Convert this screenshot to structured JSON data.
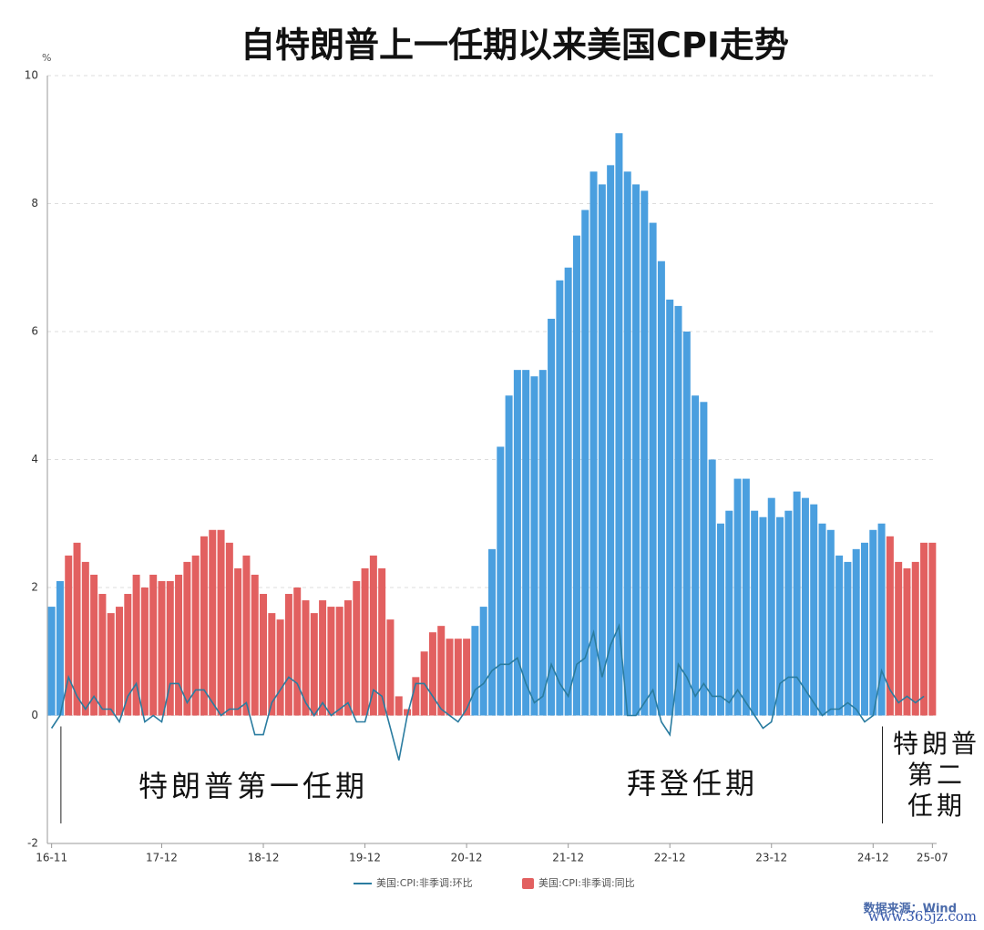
{
  "chart_data": {
    "type": "bar",
    "title": "自特朗普上一任期以来美国CPI走势",
    "y_unit": "%",
    "categories": [
      "16-11",
      null,
      null,
      null,
      null,
      null,
      null,
      null,
      null,
      null,
      null,
      null,
      null,
      "17-12",
      null,
      null,
      null,
      null,
      null,
      null,
      null,
      null,
      null,
      null,
      null,
      "18-12",
      null,
      null,
      null,
      null,
      null,
      null,
      null,
      null,
      null,
      null,
      null,
      "19-12",
      null,
      null,
      null,
      null,
      null,
      null,
      null,
      null,
      null,
      null,
      null,
      "20-12",
      null,
      null,
      null,
      null,
      null,
      null,
      null,
      null,
      null,
      null,
      null,
      "21-12",
      null,
      null,
      null,
      null,
      null,
      null,
      null,
      null,
      null,
      null,
      null,
      "22-12",
      null,
      null,
      null,
      null,
      null,
      null,
      null,
      null,
      null,
      null,
      null,
      "23-12",
      null,
      null,
      null,
      null,
      null,
      null,
      null,
      null,
      null,
      null,
      null,
      "24-12",
      null,
      null,
      null,
      null,
      null,
      null,
      "25-07"
    ],
    "ylim": [
      -2,
      10
    ],
    "yticks": [
      -2,
      0,
      2,
      4,
      6,
      8,
      10
    ],
    "grid": true,
    "series": [
      {
        "name": "美国:CPI:非季调:同比",
        "type": "bar",
        "color": "#e26060",
        "values": [
          1.7,
          2.1,
          2.5,
          2.7,
          2.4,
          2.2,
          1.9,
          1.6,
          1.7,
          1.9,
          2.2,
          2.0,
          2.2,
          2.1,
          2.1,
          2.2,
          2.4,
          2.5,
          2.8,
          2.9,
          2.9,
          2.7,
          2.3,
          2.5,
          2.2,
          1.9,
          1.6,
          1.5,
          1.9,
          2.0,
          1.8,
          1.6,
          1.8,
          1.7,
          1.7,
          1.8,
          2.1,
          2.3,
          2.5,
          2.3,
          1.5,
          0.3,
          0.1,
          0.6,
          1.0,
          1.3,
          1.4,
          1.2,
          1.2,
          1.2,
          1.4,
          1.7,
          2.6,
          4.2,
          5.0,
          5.4,
          5.4,
          5.3,
          5.4,
          6.2,
          6.8,
          7.0,
          7.5,
          7.9,
          8.5,
          8.3,
          8.6,
          9.1,
          8.5,
          8.3,
          8.2,
          7.7,
          7.1,
          6.5,
          6.4,
          6.0,
          5.0,
          4.9,
          4.0,
          3.0,
          3.2,
          3.7,
          3.7,
          3.2,
          3.1,
          3.4,
          3.1,
          3.2,
          3.5,
          3.4,
          3.3,
          3.0,
          2.9,
          2.5,
          2.4,
          2.6,
          2.7,
          2.9,
          3.0,
          2.8,
          2.4,
          2.3,
          2.4,
          2.7,
          2.7
        ],
        "colors": [
          "#4a9fdf",
          "#4a9fdf",
          "#e26060",
          "#e26060",
          "#e26060",
          "#e26060",
          "#e26060",
          "#e26060",
          "#e26060",
          "#e26060",
          "#e26060",
          "#e26060",
          "#e26060",
          "#e26060",
          "#e26060",
          "#e26060",
          "#e26060",
          "#e26060",
          "#e26060",
          "#e26060",
          "#e26060",
          "#e26060",
          "#e26060",
          "#e26060",
          "#e26060",
          "#e26060",
          "#e26060",
          "#e26060",
          "#e26060",
          "#e26060",
          "#e26060",
          "#e26060",
          "#e26060",
          "#e26060",
          "#e26060",
          "#e26060",
          "#e26060",
          "#e26060",
          "#e26060",
          "#e26060",
          "#e26060",
          "#e26060",
          "#e26060",
          "#e26060",
          "#e26060",
          "#e26060",
          "#e26060",
          "#e26060",
          "#e26060",
          "#e26060",
          "#4a9fdf",
          "#4a9fdf",
          "#4a9fdf",
          "#4a9fdf",
          "#4a9fdf",
          "#4a9fdf",
          "#4a9fdf",
          "#4a9fdf",
          "#4a9fdf",
          "#4a9fdf",
          "#4a9fdf",
          "#4a9fdf",
          "#4a9fdf",
          "#4a9fdf",
          "#4a9fdf",
          "#4a9fdf",
          "#4a9fdf",
          "#4a9fdf",
          "#4a9fdf",
          "#4a9fdf",
          "#4a9fdf",
          "#4a9fdf",
          "#4a9fdf",
          "#4a9fdf",
          "#4a9fdf",
          "#4a9fdf",
          "#4a9fdf",
          "#4a9fdf",
          "#4a9fdf",
          "#4a9fdf",
          "#4a9fdf",
          "#4a9fdf",
          "#4a9fdf",
          "#4a9fdf",
          "#4a9fdf",
          "#4a9fdf",
          "#4a9fdf",
          "#4a9fdf",
          "#4a9fdf",
          "#4a9fdf",
          "#4a9fdf",
          "#4a9fdf",
          "#4a9fdf",
          "#4a9fdf",
          "#4a9fdf",
          "#4a9fdf",
          "#4a9fdf",
          "#4a9fdf",
          "#4a9fdf",
          "#e26060",
          "#e26060",
          "#e26060",
          "#e26060",
          "#e26060",
          "#e26060"
        ]
      },
      {
        "name": "美国:CPI:非季调:环比",
        "type": "line",
        "color": "#2a7ca0",
        "values": [
          -0.2,
          0.0,
          0.6,
          0.3,
          0.1,
          0.3,
          0.1,
          0.1,
          -0.1,
          0.3,
          0.5,
          -0.1,
          0.0,
          -0.1,
          0.5,
          0.5,
          0.2,
          0.4,
          0.4,
          0.2,
          0.0,
          0.1,
          0.1,
          0.2,
          -0.3,
          -0.3,
          0.2,
          0.4,
          0.6,
          0.5,
          0.2,
          0.0,
          0.2,
          0.0,
          0.1,
          0.2,
          -0.1,
          -0.1,
          0.4,
          0.3,
          -0.2,
          -0.7,
          0.0,
          0.5,
          0.5,
          0.3,
          0.1,
          0.0,
          -0.1,
          0.1,
          0.4,
          0.5,
          0.7,
          0.8,
          0.8,
          0.9,
          0.5,
          0.2,
          0.3,
          0.8,
          0.5,
          0.3,
          0.8,
          0.9,
          1.3,
          0.6,
          1.1,
          1.4,
          0.0,
          0.0,
          0.2,
          0.4,
          -0.1,
          -0.3,
          0.8,
          0.6,
          0.3,
          0.5,
          0.3,
          0.3,
          0.2,
          0.4,
          0.2,
          0.0,
          -0.2,
          -0.1,
          0.5,
          0.6,
          0.6,
          0.4,
          0.2,
          0.0,
          0.1,
          0.1,
          0.2,
          0.1,
          -0.1,
          0.0,
          0.7,
          0.4,
          0.2,
          0.3,
          0.2,
          0.3,
          null
        ]
      }
    ],
    "annotations": [
      {
        "lines": [
          "特朗普第一任期"
        ]
      },
      {
        "lines": [
          "拜登任期"
        ]
      },
      {
        "lines": [
          "特朗普",
          "第二",
          "任期"
        ]
      }
    ],
    "source": "数据来源：Wind",
    "watermark": "www.365jz.com"
  }
}
